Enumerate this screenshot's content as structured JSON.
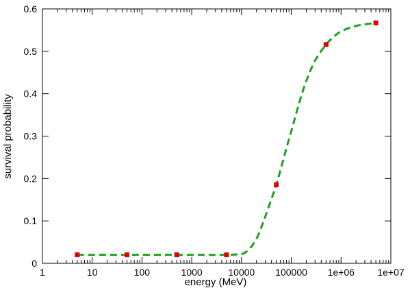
{
  "chart_data": {
    "type": "line",
    "title": "",
    "xlabel": "energy (MeV)",
    "ylabel": "survival probability",
    "x_scale": "log",
    "xlim": [
      1,
      10000000
    ],
    "ylim": [
      0,
      0.6
    ],
    "x_ticks": [
      1,
      10,
      100,
      1000,
      10000,
      100000,
      1000000,
      10000000
    ],
    "x_tick_labels": [
      "1",
      "10",
      "100",
      "1000",
      "10000",
      "100000",
      "1e+06",
      "1e+07"
    ],
    "y_ticks": [
      0,
      0.1,
      0.2,
      0.3,
      0.4,
      0.5,
      0.6
    ],
    "y_tick_labels": [
      "0",
      "0.1",
      "0.2",
      "0.3",
      "0.4",
      "0.5",
      "0.6"
    ],
    "grid": false,
    "legend": "none",
    "series": [
      {
        "style": "markers",
        "color": "#e00000",
        "x": [
          5,
          50,
          500,
          5000,
          50000,
          500000,
          5000000
        ],
        "y": [
          0.02,
          0.02,
          0.02,
          0.02,
          0.185,
          0.516,
          0.567
        ]
      },
      {
        "style": "dashed-curve",
        "color": "#1ea01e",
        "x": [
          5,
          100,
          1000,
          5000,
          10000,
          12000,
          15000,
          20000,
          25000,
          30000,
          40000,
          50000,
          60000,
          80000,
          100000,
          150000,
          200000,
          300000,
          500000,
          700000,
          1000000,
          2000000,
          5000000
        ],
        "y": [
          0.02,
          0.02,
          0.02,
          0.02,
          0.022,
          0.026,
          0.036,
          0.058,
          0.085,
          0.11,
          0.152,
          0.185,
          0.218,
          0.272,
          0.312,
          0.385,
          0.43,
          0.478,
          0.516,
          0.533,
          0.547,
          0.56,
          0.567
        ]
      }
    ]
  }
}
